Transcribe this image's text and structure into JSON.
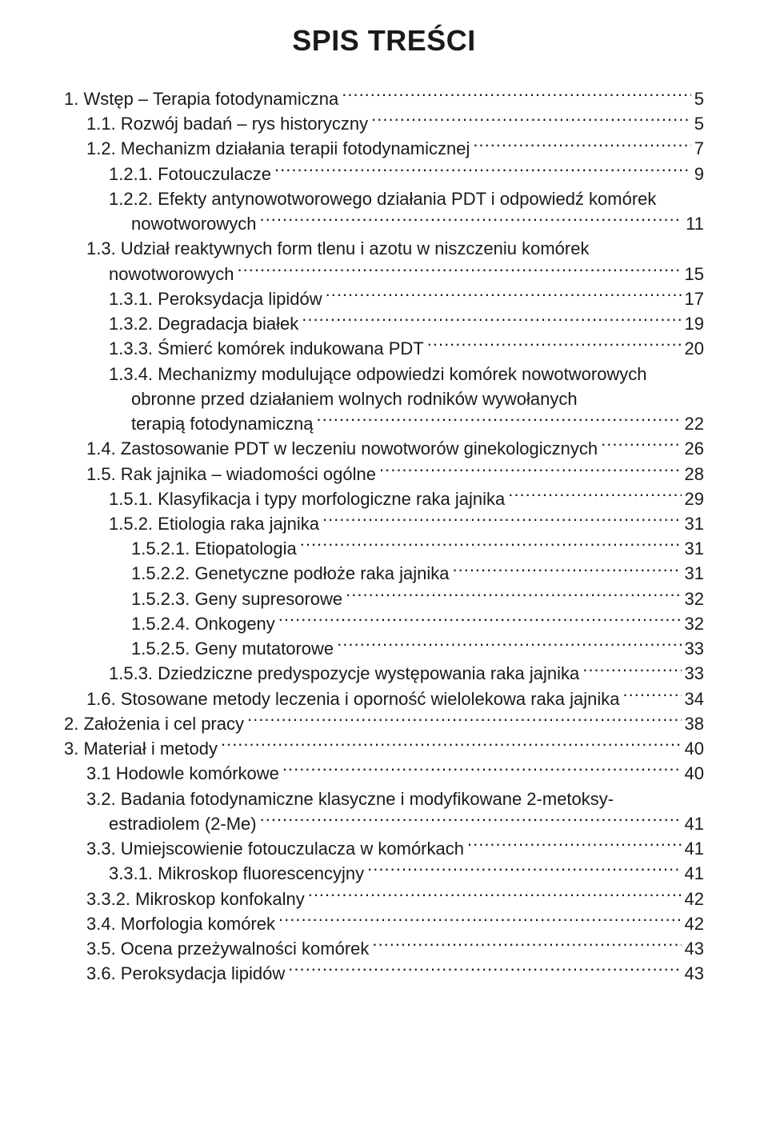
{
  "title": "SPIS TREŚCI",
  "text_color": "#1a1a1a",
  "background_color": "#ffffff",
  "title_fontsize": 36,
  "body_fontsize": 22,
  "toc": [
    {
      "level": 0,
      "label": "1. Wstęp – Terapia fotodynamiczna",
      "page": "5"
    },
    {
      "level": 1,
      "label": "1.1. Rozwój badań – rys historyczny",
      "page": "5"
    },
    {
      "level": 1,
      "label": "1.2. Mechanizm działania terapii fotodynamicznej",
      "page": "7"
    },
    {
      "level": 2,
      "label": "1.2.1. Fotouczulacze",
      "page": "9"
    },
    {
      "level": 2,
      "multiline": true,
      "lines": [
        "1.2.2. Efekty antynowotworowego działania PDT i odpowiedź komórek"
      ],
      "last": "nowotworowych",
      "cont_indent": 3,
      "page": "11"
    },
    {
      "level": 1,
      "multiline": true,
      "lines": [
        "1.3. Udział reaktywnych form tlenu i azotu w niszczeniu komórek"
      ],
      "last": "nowotworowych",
      "cont_indent": 2,
      "page": "15"
    },
    {
      "level": 2,
      "label": "1.3.1. Peroksydacja lipidów",
      "page": "17"
    },
    {
      "level": 2,
      "label": "1.3.2. Degradacja białek",
      "page": "19"
    },
    {
      "level": 2,
      "label": "1.3.3. Śmierć komórek indukowana PDT",
      "page": "20"
    },
    {
      "level": 2,
      "multiline": true,
      "lines": [
        "1.3.4. Mechanizmy modulujące odpowiedzi komórek nowotworowych",
        "obronne przed działaniem wolnych rodników wywołanych"
      ],
      "last": "terapią fotodynamiczną",
      "cont_indent": 3,
      "page": "22"
    },
    {
      "level": 1,
      "label": "1.4. Zastosowanie PDT w leczeniu nowotworów ginekologicznych",
      "page": "26"
    },
    {
      "level": 1,
      "label": "1.5. Rak jajnika – wiadomości ogólne",
      "page": "28"
    },
    {
      "level": 2,
      "label": "1.5.1. Klasyfikacja i typy morfologiczne raka jajnika",
      "page": "29"
    },
    {
      "level": 2,
      "label": "1.5.2. Etiologia raka jajnika",
      "page": "31"
    },
    {
      "level": 3,
      "label": "1.5.2.1. Etiopatologia",
      "page": "31"
    },
    {
      "level": 3,
      "label": "1.5.2.2. Genetyczne podłoże raka jajnika",
      "page": "31"
    },
    {
      "level": 3,
      "label": "1.5.2.3. Geny supresorowe",
      "page": "32"
    },
    {
      "level": 3,
      "label": "1.5.2.4. Onkogeny",
      "page": "32"
    },
    {
      "level": 3,
      "label": "1.5.2.5. Geny mutatorowe",
      "page": "33"
    },
    {
      "level": 2,
      "label": "1.5.3. Dziedziczne predyspozycje występowania raka jajnika",
      "page": "33"
    },
    {
      "level": 1,
      "label": "1.6. Stosowane metody leczenia i oporność wielolekowa raka jajnika",
      "page": "34"
    },
    {
      "level": 0,
      "label": "2. Założenia i cel pracy",
      "page": "38"
    },
    {
      "level": 0,
      "label": "3. Materiał i metody",
      "page": "40"
    },
    {
      "level": 1,
      "label": "3.1 Hodowle komórkowe",
      "page": "40"
    },
    {
      "level": 1,
      "multiline": true,
      "lines": [
        "3.2. Badania fotodynamiczne klasyczne i modyfikowane 2-metoksy-"
      ],
      "last": "estradiolem (2-Me)",
      "cont_indent": 2,
      "page": "41"
    },
    {
      "level": 1,
      "label": "3.3. Umiejscowienie fotouczulacza w komórkach",
      "page": "41"
    },
    {
      "level": 2,
      "label": "3.3.1. Mikroskop fluorescencyjny",
      "page": "41"
    },
    {
      "level": 1,
      "label": "3.3.2. Mikroskop konfokalny",
      "page": "42"
    },
    {
      "level": 1,
      "label": "3.4. Morfologia komórek",
      "page": "42"
    },
    {
      "level": 1,
      "label": "3.5. Ocena przeżywalności komórek",
      "page": "43"
    },
    {
      "level": 1,
      "label": "3.6. Peroksydacja lipidów",
      "page": "43"
    }
  ]
}
